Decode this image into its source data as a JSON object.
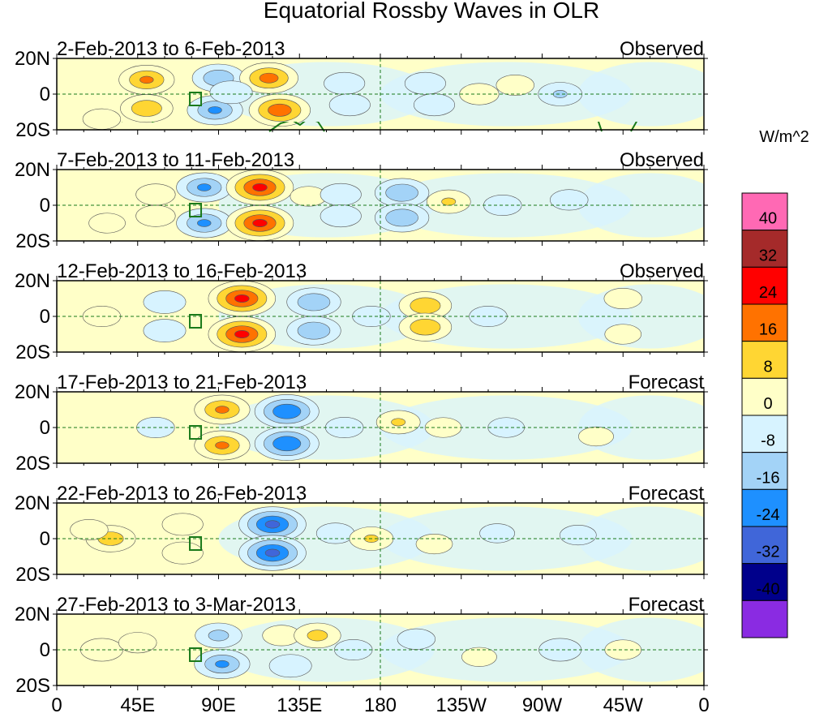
{
  "chart_data": {
    "type": "heatmap",
    "title": "Equatorial Rossby Waves in OLR",
    "units": "W/m^2",
    "x_ticks": [
      "0",
      "45E",
      "90E",
      "135E",
      "180",
      "135W",
      "90W",
      "45W",
      "0"
    ],
    "x_range_deg": [
      0,
      360
    ],
    "y_ticks": [
      "20N",
      "0",
      "20S"
    ],
    "y_range_deg": [
      -20,
      20
    ],
    "levels": [
      40,
      32,
      24,
      16,
      8,
      0,
      -8,
      -16,
      -24,
      -32,
      -40
    ],
    "colorbar_colors": [
      "#ff69b4",
      "#a52a2a",
      "#ff0000",
      "#ff7200",
      "#ffd633",
      "#ffffc8",
      "#d7f3ff",
      "#a3d3f7",
      "#1e90ff",
      "#4066d9",
      "#00008b",
      "#8a2be2"
    ],
    "panels": [
      {
        "dates": "2-Feb-2013 to 6-Feb-2013",
        "kind": "Observed",
        "blobs": [
          {
            "lon": 50,
            "lat": 8,
            "val": 18
          },
          {
            "lon": 50,
            "lat": -8,
            "val": 16
          },
          {
            "lon": 25,
            "lat": -14,
            "val": 6
          },
          {
            "lon": 90,
            "lat": 9,
            "val": -16
          },
          {
            "lon": 88,
            "lat": -9,
            "val": -18
          },
          {
            "lon": 118,
            "lat": 9,
            "val": 20
          },
          {
            "lon": 124,
            "lat": -9,
            "val": 22
          },
          {
            "lon": 97,
            "lat": 1,
            "val": -9
          },
          {
            "lon": 160,
            "lat": 6,
            "val": -8
          },
          {
            "lon": 163,
            "lat": -6,
            "val": -8
          },
          {
            "lon": 205,
            "lat": 6,
            "val": -8
          },
          {
            "lon": 210,
            "lat": -6,
            "val": -8
          },
          {
            "lon": 235,
            "lat": 0,
            "val": 7
          },
          {
            "lon": 280,
            "lat": 0,
            "val": -10
          },
          {
            "lon": 255,
            "lat": 5,
            "val": 6
          }
        ]
      },
      {
        "dates": "7-Feb-2013 to 11-Feb-2013",
        "kind": "Observed",
        "blobs": [
          {
            "lon": 55,
            "lat": 6,
            "val": 7
          },
          {
            "lon": 55,
            "lat": -6,
            "val": 7
          },
          {
            "lon": 28,
            "lat": -10,
            "val": 5
          },
          {
            "lon": 82,
            "lat": 10,
            "val": -18
          },
          {
            "lon": 82,
            "lat": -10,
            "val": -18
          },
          {
            "lon": 113,
            "lat": 10,
            "val": 26
          },
          {
            "lon": 113,
            "lat": -10,
            "val": 26
          },
          {
            "lon": 140,
            "lat": 5,
            "val": 5
          },
          {
            "lon": 158,
            "lat": 6,
            "val": -8
          },
          {
            "lon": 158,
            "lat": -6,
            "val": -8
          },
          {
            "lon": 192,
            "lat": 7,
            "val": -17
          },
          {
            "lon": 192,
            "lat": -7,
            "val": -17
          },
          {
            "lon": 218,
            "lat": 2,
            "val": 10
          },
          {
            "lon": 248,
            "lat": 0,
            "val": -6
          },
          {
            "lon": 285,
            "lat": 3,
            "val": -6
          }
        ]
      },
      {
        "dates": "12-Feb-2013 to 16-Feb-2013",
        "kind": "Observed",
        "blobs": [
          {
            "lon": 60,
            "lat": 8,
            "val": -9
          },
          {
            "lon": 60,
            "lat": -8,
            "val": -9
          },
          {
            "lon": 25,
            "lat": 0,
            "val": 6
          },
          {
            "lon": 103,
            "lat": 10,
            "val": 26
          },
          {
            "lon": 103,
            "lat": -10,
            "val": 26
          },
          {
            "lon": 143,
            "lat": 8,
            "val": -17
          },
          {
            "lon": 143,
            "lat": -8,
            "val": -17
          },
          {
            "lon": 175,
            "lat": 0,
            "val": -6
          },
          {
            "lon": 205,
            "lat": 6,
            "val": 16
          },
          {
            "lon": 205,
            "lat": -6,
            "val": 16
          },
          {
            "lon": 240,
            "lat": 0,
            "val": -6
          },
          {
            "lon": 315,
            "lat": 10,
            "val": 6
          },
          {
            "lon": 315,
            "lat": -10,
            "val": 5
          }
        ]
      },
      {
        "dates": "17-Feb-2013 to 21-Feb-2013",
        "kind": "Forecast",
        "blobs": [
          {
            "lon": 55,
            "lat": 0,
            "val": -6
          },
          {
            "lon": 92,
            "lat": 10,
            "val": 18
          },
          {
            "lon": 92,
            "lat": -10,
            "val": 18
          },
          {
            "lon": 128,
            "lat": 9,
            "val": -24
          },
          {
            "lon": 128,
            "lat": -9,
            "val": -24
          },
          {
            "lon": 160,
            "lat": 0,
            "val": -6
          },
          {
            "lon": 190,
            "lat": 3,
            "val": 10
          },
          {
            "lon": 215,
            "lat": 0,
            "val": 5
          },
          {
            "lon": 250,
            "lat": 0,
            "val": -5
          },
          {
            "lon": 300,
            "lat": -5,
            "val": 4
          }
        ]
      },
      {
        "dates": "22-Feb-2013 to 26-Feb-2013",
        "kind": "Forecast",
        "blobs": [
          {
            "lon": 30,
            "lat": 0,
            "val": 14
          },
          {
            "lon": 18,
            "lat": 5,
            "val": 6
          },
          {
            "lon": 70,
            "lat": 8,
            "val": 8
          },
          {
            "lon": 70,
            "lat": -8,
            "val": 8
          },
          {
            "lon": 120,
            "lat": 8,
            "val": -26
          },
          {
            "lon": 120,
            "lat": -8,
            "val": -26
          },
          {
            "lon": 155,
            "lat": 3,
            "val": -6
          },
          {
            "lon": 175,
            "lat": 0,
            "val": 10
          },
          {
            "lon": 210,
            "lat": -3,
            "val": 5
          },
          {
            "lon": 245,
            "lat": 3,
            "val": -4
          },
          {
            "lon": 290,
            "lat": 2,
            "val": -5
          }
        ]
      },
      {
        "dates": "27-Feb-2013 to 3-Mar-2013",
        "kind": "Forecast",
        "blobs": [
          {
            "lon": 25,
            "lat": 0,
            "val": 9
          },
          {
            "lon": 45,
            "lat": 4,
            "val": 6
          },
          {
            "lon": 90,
            "lat": 8,
            "val": -12
          },
          {
            "lon": 92,
            "lat": -8,
            "val": -18
          },
          {
            "lon": 125,
            "lat": 8,
            "val": 6
          },
          {
            "lon": 130,
            "lat": -9,
            "val": -9
          },
          {
            "lon": 145,
            "lat": 8,
            "val": 12
          },
          {
            "lon": 165,
            "lat": 0,
            "val": -6
          },
          {
            "lon": 200,
            "lat": 6,
            "val": -6
          },
          {
            "lon": 235,
            "lat": -4,
            "val": 4
          },
          {
            "lon": 280,
            "lat": 0,
            "val": -9
          },
          {
            "lon": 315,
            "lat": 0,
            "val": 5
          }
        ]
      }
    ]
  }
}
